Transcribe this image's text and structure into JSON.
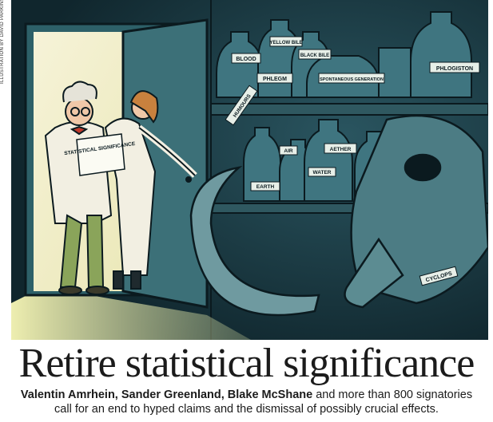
{
  "credit": "ILLUSTRATION BY DAVID PARKINS",
  "headline": "Retire statistical significance",
  "standfirst": {
    "authors": "Valentin Amrhein, Sander Greenland, Blake McShane",
    "line1_rest": " and more than 800 signatories",
    "line2": "call for an end to hyped claims and the dismissal of possibly crucial effects."
  },
  "illustration": {
    "document_label": "STATISTICAL SIGNIFICANCE",
    "jar_labels": {
      "blood": "BLOOD",
      "yellow_bile": "YELLOW BILE",
      "black_bile": "BLACK BILE",
      "phlegm": "PHLEGM",
      "spontaneous_generation": "SPONTANEOUS GENERATION",
      "phlogiston": "PHLOGISTON",
      "humours": "HUMOURS",
      "air": "AIR",
      "aether": "AETHER",
      "water": "WATER",
      "earth": "EARTH",
      "cyclops": "CYCLOPS"
    }
  }
}
